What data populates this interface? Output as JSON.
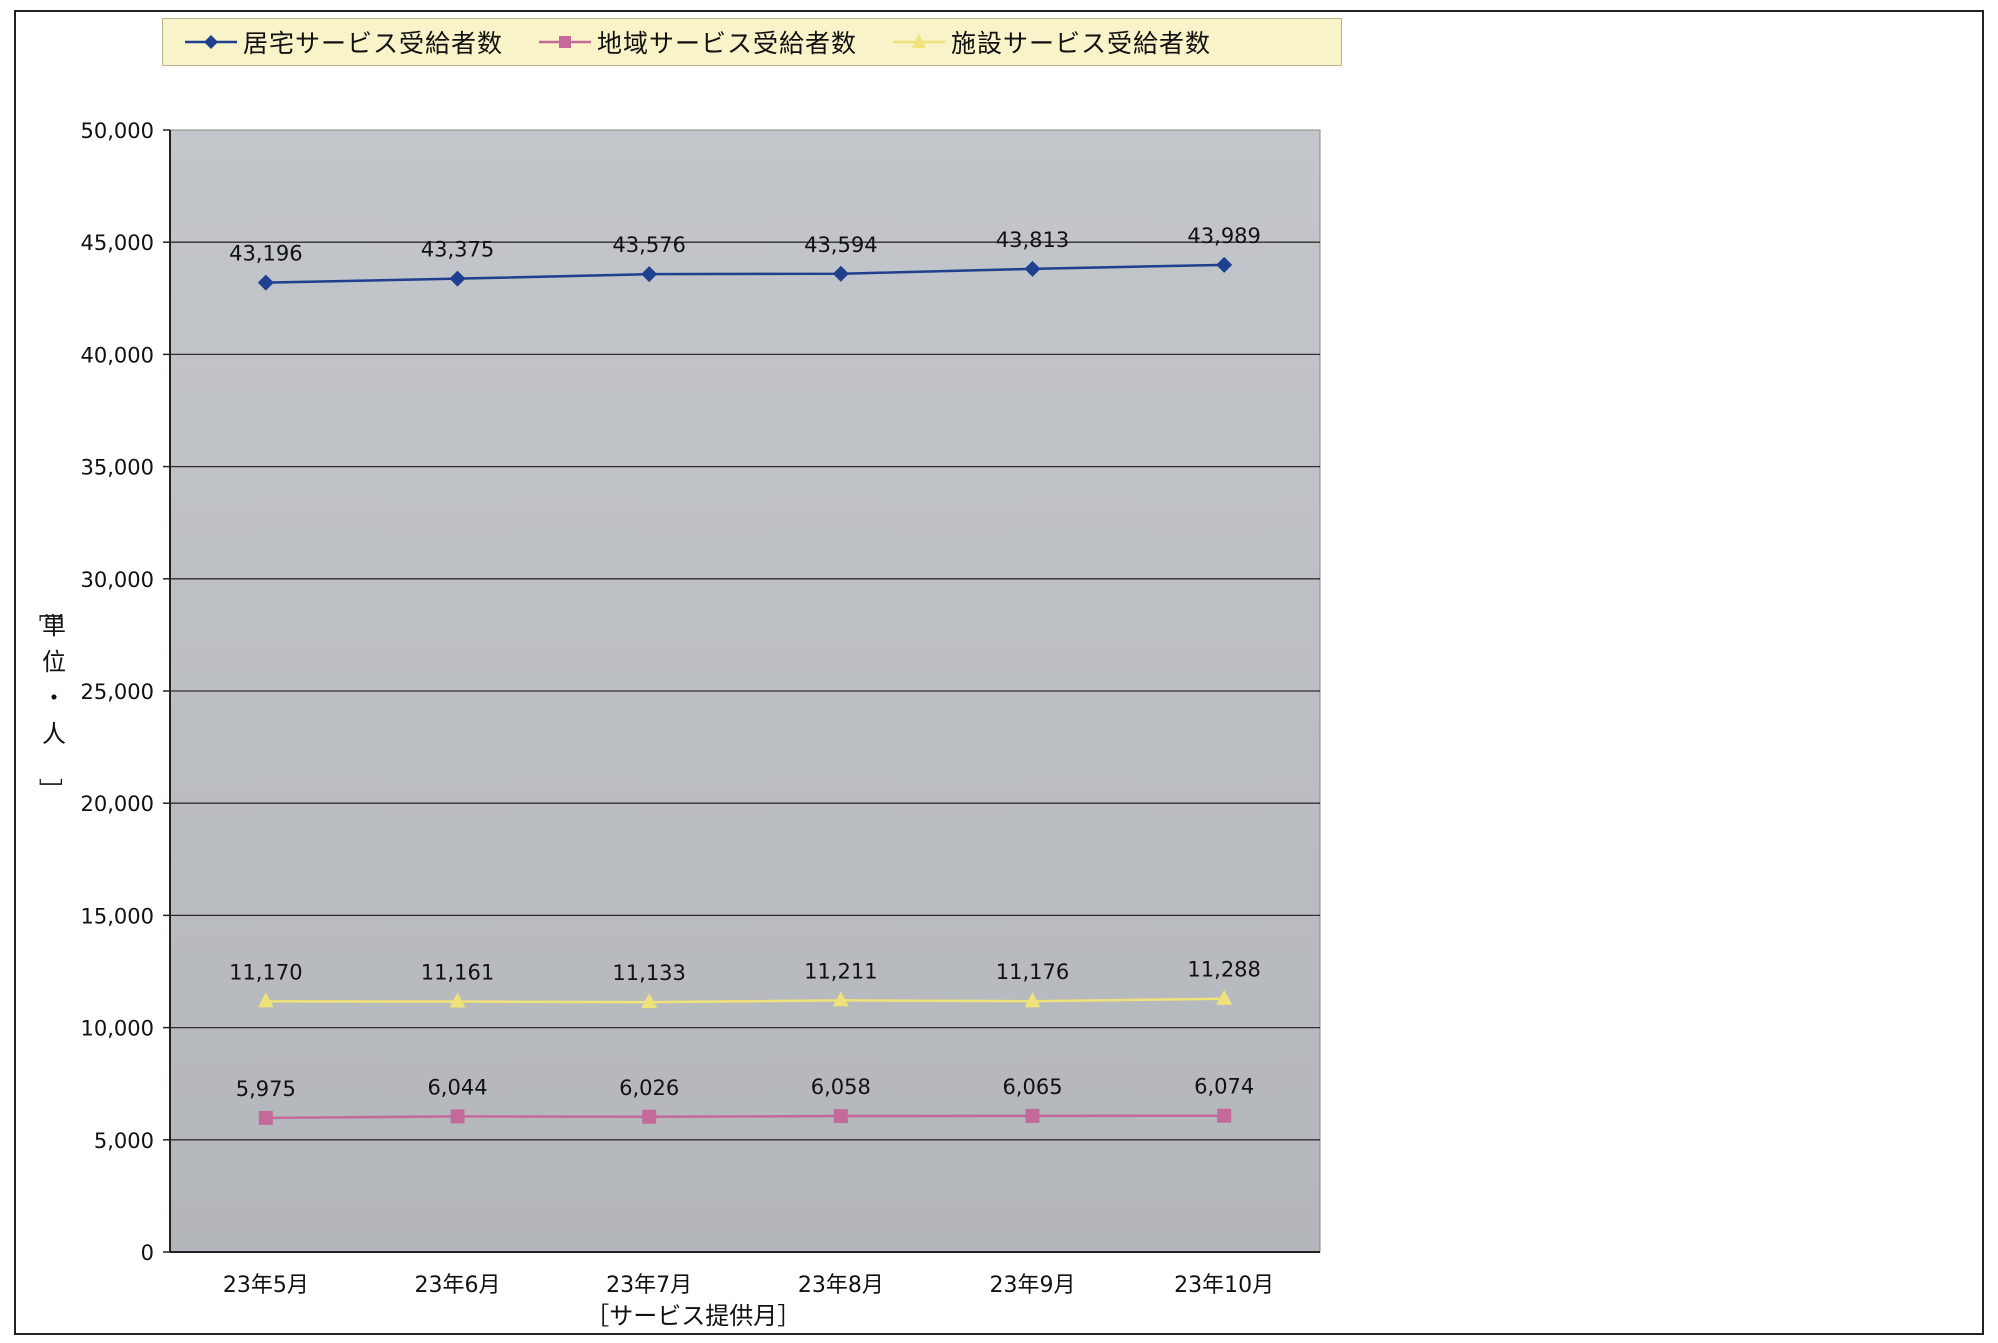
{
  "chart_data": {
    "type": "line",
    "categories": [
      "23年5月",
      "23年6月",
      "23年7月",
      "23年8月",
      "23年9月",
      "23年10月"
    ],
    "series": [
      {
        "name": "居宅サービス受給者数",
        "values": [
          43196,
          43375,
          43576,
          43594,
          43813,
          43989
        ],
        "labels": [
          "43,196",
          "43,375",
          "43,576",
          "43,594",
          "43,813",
          "43,989"
        ],
        "color": "#1f3f8f",
        "marker": "diamond"
      },
      {
        "name": "地域サービス受給者数",
        "values": [
          5975,
          6044,
          6026,
          6058,
          6065,
          6074
        ],
        "labels": [
          "5,975",
          "6,044",
          "6,026",
          "6,058",
          "6,065",
          "6,074"
        ],
        "color": "#c46a9a",
        "marker": "square"
      },
      {
        "name": "施設サービス受給者数",
        "values": [
          11170,
          11161,
          11133,
          11211,
          11176,
          11288
        ],
        "labels": [
          "11,170",
          "11,161",
          "11,133",
          "11,211",
          "11,176",
          "11,288"
        ],
        "color": "#efe27a",
        "marker": "triangle"
      }
    ],
    "ylim": [
      0,
      50000
    ],
    "yticks": [
      0,
      5000,
      10000,
      15000,
      20000,
      25000,
      30000,
      35000,
      40000,
      45000,
      50000
    ],
    "ytick_labels": [
      "0",
      "5,000",
      "10,000",
      "15,000",
      "20,000",
      "25,000",
      "30,000",
      "35,000",
      "40,000",
      "45,000",
      "50,000"
    ],
    "xlabel": "［サービス提供月］",
    "ylabel": "［単位・人］",
    "grid": true,
    "legend_position": "top",
    "plot_background": "#b9bcc1",
    "legend_background": "#f8f3c8"
  }
}
